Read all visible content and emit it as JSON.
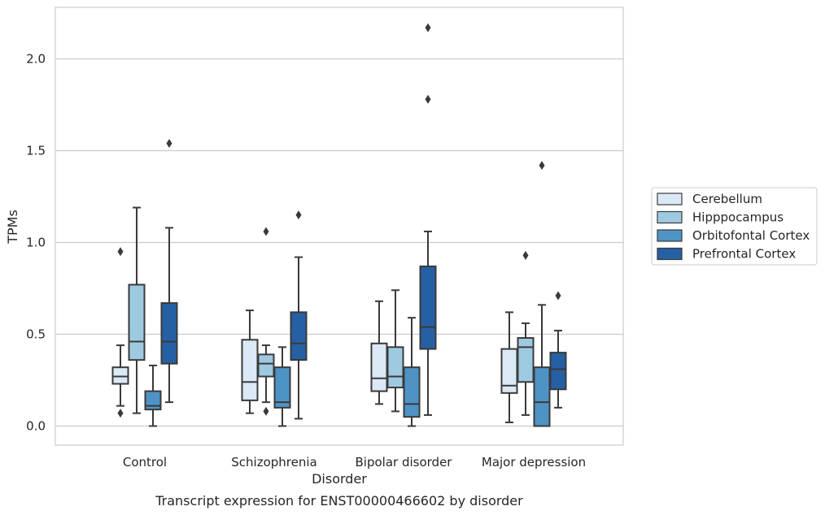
{
  "chart_data": {
    "type": "box",
    "xlabel": "Disorder",
    "ylabel": "TPMs",
    "caption": "Transcript expression for ENST00000466602 by disorder",
    "ylim": [
      -0.1,
      2.28
    ],
    "yticks": [
      0.0,
      0.5,
      1.0,
      1.5,
      2.0
    ],
    "ytick_labels": [
      "0.0",
      "0.5",
      "1.0",
      "1.5",
      "2.0"
    ],
    "grid": "horizontal",
    "legend_position": "right",
    "categories": [
      "Control",
      "Schizophrenia",
      "Bipolar disorder",
      "Major depression"
    ],
    "series": [
      {
        "name": "Cerebellum",
        "color": "#dbe9f6",
        "boxes": [
          {
            "whislo": 0.11,
            "q1": 0.23,
            "med": 0.27,
            "q3": 0.32,
            "whishi": 0.44,
            "fliers": [
              0.95,
              0.07
            ]
          },
          {
            "whislo": 0.07,
            "q1": 0.14,
            "med": 0.24,
            "q3": 0.47,
            "whishi": 0.63,
            "fliers": []
          },
          {
            "whislo": 0.12,
            "q1": 0.19,
            "med": 0.26,
            "q3": 0.45,
            "whishi": 0.68,
            "fliers": []
          },
          {
            "whislo": 0.02,
            "q1": 0.18,
            "med": 0.22,
            "q3": 0.42,
            "whishi": 0.62,
            "fliers": []
          }
        ]
      },
      {
        "name": "Hipppocampus",
        "color": "#9ecae1",
        "boxes": [
          {
            "whislo": 0.07,
            "q1": 0.36,
            "med": 0.46,
            "q3": 0.77,
            "whishi": 1.19,
            "fliers": []
          },
          {
            "whislo": 0.13,
            "q1": 0.27,
            "med": 0.34,
            "q3": 0.39,
            "whishi": 0.44,
            "fliers": [
              1.06,
              0.08
            ]
          },
          {
            "whislo": 0.08,
            "q1": 0.21,
            "med": 0.27,
            "q3": 0.43,
            "whishi": 0.74,
            "fliers": []
          },
          {
            "whislo": 0.06,
            "q1": 0.24,
            "med": 0.43,
            "q3": 0.48,
            "whishi": 0.56,
            "fliers": [
              0.93
            ]
          }
        ]
      },
      {
        "name": "Orbitofontal Cortex",
        "color": "#4f93c5",
        "boxes": [
          {
            "whislo": 0.0,
            "q1": 0.09,
            "med": 0.11,
            "q3": 0.19,
            "whishi": 0.33,
            "fliers": []
          },
          {
            "whislo": 0.0,
            "q1": 0.1,
            "med": 0.13,
            "q3": 0.32,
            "whishi": 0.43,
            "fliers": []
          },
          {
            "whislo": 0.0,
            "q1": 0.05,
            "med": 0.12,
            "q3": 0.32,
            "whishi": 0.59,
            "fliers": []
          },
          {
            "whislo": 0.0,
            "q1": 0.0,
            "med": 0.13,
            "q3": 0.32,
            "whishi": 0.66,
            "fliers": [
              1.42
            ]
          }
        ]
      },
      {
        "name": "Prefrontal Cortex",
        "color": "#2660a4",
        "boxes": [
          {
            "whislo": 0.13,
            "q1": 0.34,
            "med": 0.46,
            "q3": 0.67,
            "whishi": 1.08,
            "fliers": [
              1.54
            ]
          },
          {
            "whislo": 0.04,
            "q1": 0.36,
            "med": 0.45,
            "q3": 0.62,
            "whishi": 0.92,
            "fliers": [
              1.15
            ]
          },
          {
            "whislo": 0.06,
            "q1": 0.42,
            "med": 0.54,
            "q3": 0.87,
            "whishi": 1.06,
            "fliers": [
              1.78,
              2.17
            ]
          },
          {
            "whislo": 0.1,
            "q1": 0.2,
            "med": 0.31,
            "q3": 0.4,
            "whishi": 0.52,
            "fliers": [
              0.71
            ]
          }
        ]
      }
    ]
  }
}
